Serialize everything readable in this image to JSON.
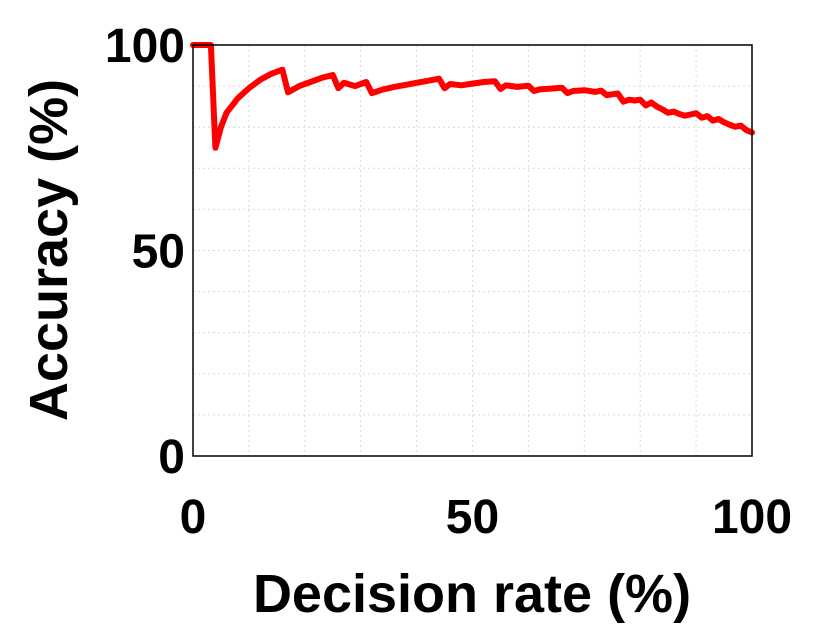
{
  "chart_data": {
    "type": "line",
    "title": "",
    "xlabel": "Decision rate (%)",
    "ylabel": "Accuracy (%)",
    "xlim": [
      0,
      100
    ],
    "ylim": [
      0,
      100
    ],
    "xticks": [
      0,
      50,
      100
    ],
    "yticks": [
      0,
      50,
      100
    ],
    "xtick_labels": [
      "0",
      "50",
      "100"
    ],
    "ytick_labels": [
      "0",
      "50",
      "100"
    ],
    "grid": true,
    "legend": "none",
    "series": [
      {
        "color": "#ff0000",
        "x": [
          0,
          3.2,
          4,
          5,
          6,
          8,
          10,
          12,
          14,
          16,
          17,
          19,
          21,
          23,
          25,
          26,
          27,
          29,
          31,
          32,
          34,
          36,
          38,
          40,
          42,
          44,
          45,
          46,
          48,
          50,
          52,
          54,
          55,
          56,
          58,
          60,
          61,
          62,
          64,
          66,
          67,
          68,
          70,
          72,
          73,
          74,
          76,
          77,
          78,
          79,
          80,
          81,
          82,
          83,
          84,
          85,
          86,
          87,
          88,
          89,
          90,
          91,
          92,
          93,
          94,
          95,
          96,
          97,
          98,
          99,
          100
        ],
        "y": [
          100,
          100,
          75,
          80,
          83.5,
          87,
          89.5,
          91.5,
          93,
          94,
          88.5,
          90,
          91,
          92,
          92.7,
          89.5,
          90.8,
          90,
          91,
          88.3,
          89.2,
          89.8,
          90.3,
          90.8,
          91.3,
          91.8,
          89.5,
          90.5,
          90.2,
          90.6,
          91,
          91.2,
          89.3,
          90.2,
          89.8,
          90.1,
          88.8,
          89.2,
          89.4,
          89.6,
          88.3,
          88.8,
          89,
          88.6,
          88.9,
          87.8,
          88.2,
          86.2,
          86.7,
          86.5,
          86.7,
          85.3,
          86,
          85,
          84.3,
          83.5,
          83.8,
          83.2,
          82.8,
          83.1,
          83.4,
          82.3,
          82.7,
          81.6,
          82,
          81.2,
          80.6,
          80.1,
          80.4,
          79.3,
          78.7
        ]
      }
    ]
  }
}
